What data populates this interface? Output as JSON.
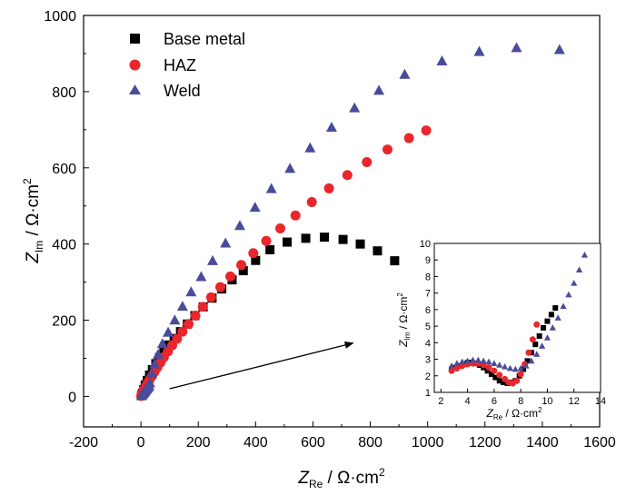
{
  "chart_data": [
    {
      "type": "scatter",
      "xlabel": {
        "main": "Z",
        "sub": "Re",
        "unit": " / Ω·cm",
        "sup": "2"
      },
      "ylabel": {
        "main": "Z",
        "sub": "Im",
        "unit": " / Ω·cm",
        "sup": "2"
      },
      "xlim": [
        -200,
        1600
      ],
      "ylim": [
        -80,
        1000
      ],
      "xticks": [
        -200,
        0,
        200,
        400,
        600,
        800,
        1000,
        1200,
        1400,
        1600
      ],
      "yticks": [
        0,
        200,
        400,
        600,
        800,
        1000
      ],
      "xtick_labels": [
        "-200",
        "0",
        "200",
        "400",
        "600",
        "800",
        "1000",
        "1200",
        "1400",
        "1600"
      ],
      "ytick_labels": [
        "0",
        "200",
        "400",
        "600",
        "800",
        "1000"
      ],
      "legend_position": "top-left",
      "series": [
        {
          "name": "Base metal",
          "marker": "square",
          "color": "#000000",
          "x": [
            2,
            5,
            10,
            15,
            22,
            30,
            40,
            52,
            65,
            80,
            97,
            116,
            138,
            162,
            188,
            217,
            248,
            282,
            318,
            357,
            400,
            450,
            510,
            575,
            640,
            705,
            765,
            825,
            885
          ],
          "y": [
            2,
            8,
            18,
            30,
            42,
            56,
            70,
            86,
            102,
            118,
            135,
            152,
            170,
            190,
            212,
            235,
            258,
            282,
            306,
            330,
            357,
            385,
            405,
            415,
            418,
            412,
            400,
            382,
            356
          ]
        },
        {
          "name": "HAZ",
          "marker": "circle",
          "color": "#e8262b",
          "x": [
            1,
            3,
            5,
            8,
            12,
            17,
            23,
            30,
            38,
            47,
            57,
            68,
            80,
            94,
            109,
            126,
            145,
            166,
            190,
            216,
            245,
            277,
            312,
            350,
            392,
            437,
            486,
            539,
            596,
            656,
            720,
            788,
            860,
            935,
            995
          ],
          "y": [
            1,
            4,
            8,
            13,
            19,
            26,
            34,
            43,
            53,
            64,
            76,
            89,
            103,
            118,
            134,
            151,
            170,
            190,
            212,
            235,
            260,
            287,
            315,
            345,
            376,
            408,
            441,
            475,
            510,
            546,
            581,
            615,
            648,
            678,
            698
          ]
        },
        {
          "name": "Weld",
          "marker": "triangle",
          "color": "#4a4b9b",
          "x": [
            2,
            4,
            6,
            8,
            10,
            12,
            14,
            16,
            18,
            20,
            22,
            24,
            26,
            28,
            31,
            38,
            48,
            60,
            75,
            95,
            118,
            145,
            175,
            210,
            250,
            295,
            345,
            398,
            455,
            520,
            590,
            665,
            745,
            830,
            920,
            1050,
            1180,
            1310,
            1460
          ],
          "y": [
            2,
            4,
            6,
            8,
            10,
            12,
            14,
            16,
            18,
            20,
            22,
            24,
            26,
            28,
            35,
            60,
            85,
            110,
            138,
            168,
            200,
            236,
            274,
            314,
            356,
            402,
            448,
            496,
            545,
            598,
            652,
            706,
            757,
            803,
            845,
            880,
            905,
            915,
            910
          ]
        }
      ],
      "annotation": {
        "type": "arrow",
        "from": [
          100,
          20
        ],
        "to": [
          740,
          140
        ]
      }
    },
    {
      "type": "scatter",
      "role": "inset",
      "xlabel": {
        "main": "Z",
        "sub": "Re",
        "unit": " / Ω·cm",
        "sup": "2"
      },
      "ylabel": {
        "main": "Z",
        "sub": "Im",
        "unit": " / Ω·cm",
        "sup": "2"
      },
      "xlim": [
        1.5,
        14
      ],
      "ylim": [
        1,
        10
      ],
      "xticks": [
        2,
        4,
        6,
        8,
        10,
        12,
        14
      ],
      "yticks": [
        1,
        2,
        3,
        4,
        5,
        6,
        7,
        8,
        9,
        10
      ],
      "xtick_labels": [
        "2",
        "4",
        "6",
        "8",
        "10",
        "12",
        "14"
      ],
      "ytick_labels": [
        "1",
        "2",
        "3",
        "4",
        "5",
        "6",
        "7",
        "8",
        "9",
        "10"
      ],
      "series": [
        {
          "name": "Base metal",
          "marker": "square",
          "color": "#000000",
          "x": [
            2.8,
            3.1,
            3.4,
            3.7,
            4.0,
            4.3,
            4.6,
            4.9,
            5.2,
            5.5,
            5.8,
            6.1,
            6.4,
            6.7,
            7.0,
            7.3,
            7.6,
            7.9,
            8.2,
            8.5,
            8.8,
            9.1,
            9.4,
            9.7,
            10.0,
            10.3,
            10.6
          ],
          "y": [
            2.4,
            2.5,
            2.6,
            2.7,
            2.8,
            2.8,
            2.75,
            2.65,
            2.5,
            2.3,
            2.1,
            1.9,
            1.7,
            1.6,
            1.55,
            1.6,
            1.7,
            2.0,
            2.4,
            2.9,
            3.4,
            3.9,
            4.4,
            4.9,
            5.3,
            5.7,
            6.1
          ]
        },
        {
          "name": "HAZ",
          "marker": "circle",
          "color": "#e8262b",
          "x": [
            2.8,
            3.2,
            3.6,
            4.0,
            4.4,
            4.8,
            5.2,
            5.6,
            6.0,
            6.4,
            6.8,
            7.1,
            7.4,
            7.7,
            8.0,
            8.3,
            8.6,
            8.9,
            9.2
          ],
          "y": [
            2.3,
            2.45,
            2.6,
            2.7,
            2.75,
            2.75,
            2.65,
            2.5,
            2.3,
            2.05,
            1.8,
            1.6,
            1.55,
            1.7,
            2.1,
            2.7,
            3.4,
            4.2,
            5.1
          ]
        },
        {
          "name": "Weld",
          "marker": "triangle",
          "color": "#4a4b9b",
          "x": [
            2.8,
            3.2,
            3.6,
            4.0,
            4.4,
            4.8,
            5.2,
            5.6,
            6.0,
            6.4,
            6.8,
            7.2,
            7.6,
            8.0,
            8.4,
            8.8,
            9.2,
            9.6,
            10.0,
            10.4,
            10.8,
            11.2,
            11.6,
            12.0,
            12.4,
            12.8
          ],
          "y": [
            2.6,
            2.75,
            2.85,
            2.9,
            2.95,
            2.95,
            2.9,
            2.85,
            2.75,
            2.65,
            2.55,
            2.45,
            2.4,
            2.45,
            2.6,
            2.9,
            3.3,
            3.8,
            4.3,
            4.9,
            5.5,
            6.2,
            6.9,
            7.6,
            8.4,
            9.3
          ]
        }
      ]
    }
  ]
}
